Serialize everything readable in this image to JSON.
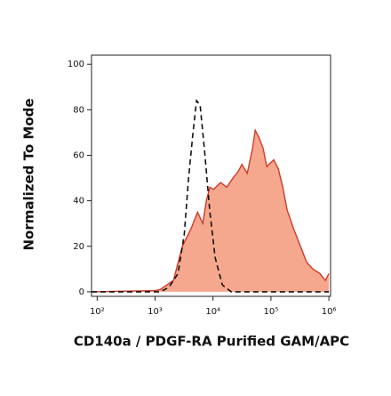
{
  "chart_data": {
    "type": "area",
    "xlabel": "CD140a / PDGF-RA Purified GAM/APC",
    "ylabel": "Normalized To Mode",
    "log_x": true,
    "xlim": [
      80,
      1070000
    ],
    "ylim": [
      -2,
      104
    ],
    "xticks": [
      {
        "value": 100,
        "label": "10²"
      },
      {
        "value": 1000,
        "label": "10³"
      },
      {
        "value": 10000,
        "label": "10⁴"
      },
      {
        "value": 100000,
        "label": "10⁵"
      },
      {
        "value": 1000000,
        "label": "10⁶"
      }
    ],
    "yticks": [
      0,
      20,
      40,
      60,
      80,
      100
    ],
    "series": [
      {
        "color": "#d03a2a",
        "fill": "#f5a88e",
        "x": [
          80,
          1000,
          1225,
          2080,
          2960,
          4220,
          5400,
          6670,
          7680,
          8830,
          10200,
          13500,
          17300,
          22100,
          27400,
          31500,
          38900,
          48100,
          53500,
          61600,
          73400,
          84600,
          101000,
          112000,
          134000,
          160000,
          190000,
          244000,
          323000,
          414000,
          530000,
          703000,
          869000,
          1000000
        ],
        "values": [
          0,
          0.5,
          1,
          5,
          20,
          28,
          35,
          30,
          40,
          46,
          45,
          48,
          46,
          50,
          53,
          56,
          52,
          63,
          71,
          68,
          63,
          55,
          57,
          58,
          54,
          46,
          36,
          28,
          20,
          13,
          10,
          8,
          5,
          8
        ]
      },
      {
        "color": "#111111",
        "line_style": "dashed",
        "x": [
          80,
          1225,
          1742,
          2483,
          3180,
          3790,
          4520,
          5200,
          5990,
          7150,
          8830,
          10900,
          14480,
          20600,
          1000000
        ],
        "values": [
          0,
          0,
          2,
          8,
          25,
          50,
          70,
          84,
          82,
          62,
          35,
          15,
          3,
          0,
          0
        ]
      }
    ]
  }
}
